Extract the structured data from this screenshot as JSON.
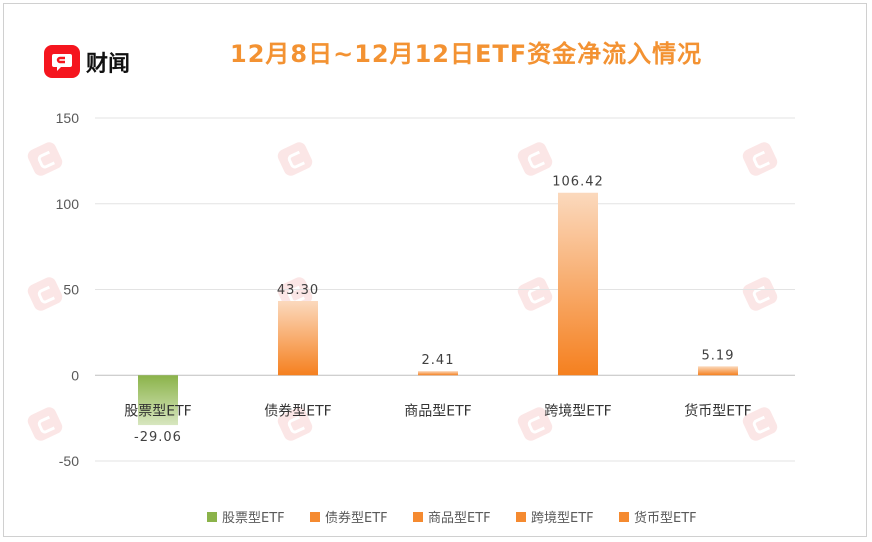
{
  "brand": {
    "name": "财闻",
    "color": "#f5151e"
  },
  "chart_data": {
    "type": "bar",
    "title": "12月8日~12月12日ETF资金净流入情况",
    "categories": [
      "股票型ETF",
      "债券型ETF",
      "商品型ETF",
      "跨境型ETF",
      "货币型ETF"
    ],
    "values": [
      -29.06,
      43.3,
      2.41,
      106.42,
      5.19
    ],
    "data_labels": [
      "-29.06",
      "43.30",
      "2.41",
      "106.42",
      "5.19"
    ],
    "colors": [
      "#8bb34a",
      "#f58a30",
      "#f58a30",
      "#f58a30",
      "#f58a30"
    ],
    "ylim": [
      -50,
      150
    ],
    "yticks": [
      -50,
      0,
      50,
      100,
      150
    ],
    "grid": true,
    "legend_placement": "bottom",
    "xlabel": "",
    "ylabel": ""
  }
}
